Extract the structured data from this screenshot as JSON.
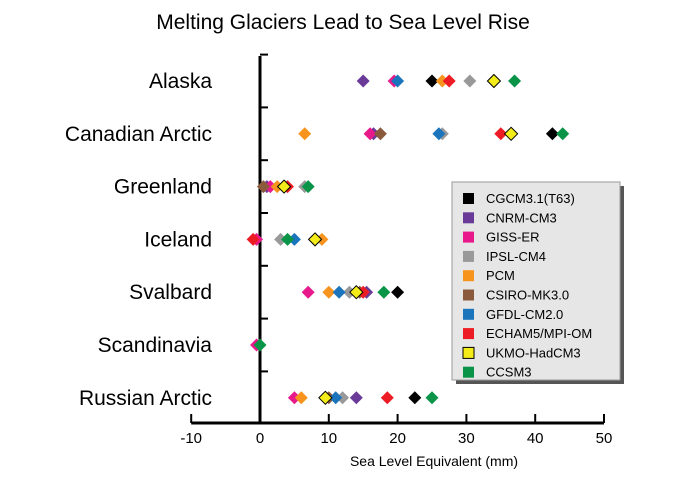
{
  "chart_data": {
    "type": "scatter",
    "title": "Melting Glaciers Lead to Sea Level Rise",
    "xlabel": "Sea Level Equivalent (mm)",
    "ylabel": "",
    "xlim": [
      -10,
      50
    ],
    "xticks": [
      "-10",
      "0",
      "10",
      "20",
      "30",
      "40",
      "50"
    ],
    "categories": [
      "Alaska",
      "Canadian Arctic",
      "Greenland",
      "Iceland",
      "Svalbard",
      "Scandinavia",
      "Russian Arctic"
    ],
    "grid": false,
    "legend_position": "right",
    "series": [
      {
        "name": "CGCM3.1(T63)",
        "color": "#000000",
        "values": [
          25.0,
          42.5,
          null,
          null,
          20.0,
          null,
          22.5
        ]
      },
      {
        "name": "CNRM-CM3",
        "color": "#6a3a98",
        "values": [
          15.0,
          16.5,
          1.0,
          null,
          15.5,
          null,
          14.0
        ]
      },
      {
        "name": "GISS-ER",
        "color": "#e8198b",
        "values": [
          19.5,
          16.0,
          1.5,
          -0.5,
          7.0,
          -0.5,
          5.0
        ]
      },
      {
        "name": "IPSL-CM4",
        "color": "#999999",
        "values": [
          30.5,
          26.5,
          6.5,
          3.0,
          13.0,
          null,
          12.0
        ]
      },
      {
        "name": "PCM",
        "color": "#f7941d",
        "values": [
          26.5,
          6.5,
          2.5,
          9.0,
          10.0,
          null,
          6.0
        ]
      },
      {
        "name": "CSIRO-MK3.0",
        "color": "#8b5a3c",
        "values": [
          null,
          17.5,
          0.5,
          null,
          14.5,
          null,
          10.0
        ]
      },
      {
        "name": "GFDL-CM2.0",
        "color": "#1b75bc",
        "values": [
          20.0,
          26.0,
          3.5,
          5.0,
          11.5,
          null,
          11.0
        ]
      },
      {
        "name": "ECHAM5/MPI-OM",
        "color": "#ed1c24",
        "values": [
          27.5,
          35.0,
          4.0,
          -1.0,
          15.0,
          null,
          18.5
        ]
      },
      {
        "name": "UKMO-HadCM3",
        "color": "#f3ec19",
        "values": [
          34.0,
          36.5,
          3.5,
          8.0,
          14.0,
          null,
          9.5
        ]
      },
      {
        "name": "CCSM3",
        "color": "#0a9447",
        "values": [
          37.0,
          44.0,
          7.0,
          4.0,
          18.0,
          0.0,
          25.0
        ]
      }
    ]
  }
}
